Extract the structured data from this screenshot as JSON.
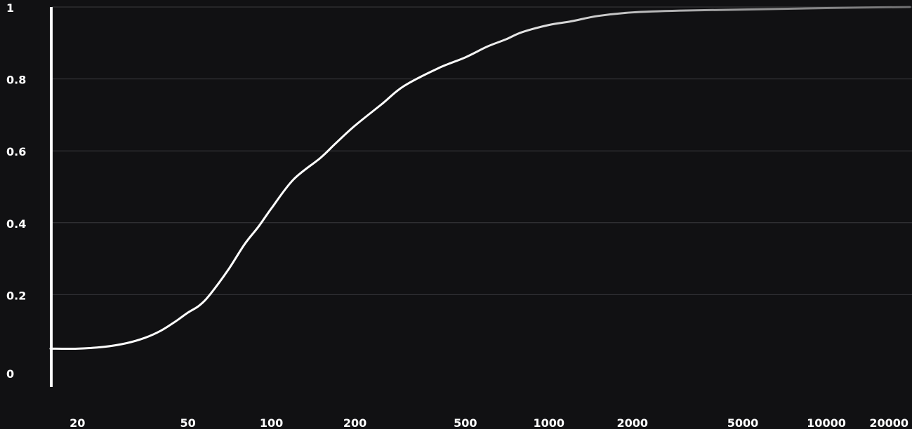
{
  "colors": {
    "background": "#111113",
    "line": "#ffffff",
    "axis": "#ffffff",
    "grid": "#3a3a3e"
  },
  "chart_data": {
    "type": "line",
    "title": "",
    "xlabel": "",
    "ylabel": "",
    "xscale": "log",
    "xlim": [
      16,
      20000
    ],
    "ylim": [
      0,
      1
    ],
    "grid": "horizontal",
    "legend": "none",
    "xticks": [
      20,
      50,
      100,
      200,
      500,
      1000,
      2000,
      5000,
      10000,
      20000
    ],
    "xtick_labels": [
      "20",
      "50",
      "100",
      "200",
      "500",
      "1000",
      "2000",
      "5000",
      "10000",
      "20000"
    ],
    "yticks": [
      0,
      0.2,
      0.4,
      0.6,
      0.8,
      1
    ],
    "ytick_labels": [
      "0",
      "0.2",
      "0.4",
      "0.6",
      "0.8",
      "1"
    ],
    "series": [
      {
        "x": [
          16,
          20,
          25,
          30,
          35,
          40,
          45,
          50,
          55,
          60,
          70,
          80,
          90,
          100,
          120,
          150,
          170,
          200,
          250,
          300,
          400,
          500,
          600,
          700,
          800,
          1000,
          1200,
          1500,
          2000,
          3000,
          5000,
          10000,
          20000
        ],
        "y": [
          0.05,
          0.05,
          0.055,
          0.065,
          0.08,
          0.1,
          0.125,
          0.15,
          0.17,
          0.2,
          0.27,
          0.34,
          0.39,
          0.44,
          0.52,
          0.58,
          0.62,
          0.67,
          0.73,
          0.78,
          0.83,
          0.86,
          0.89,
          0.91,
          0.93,
          0.95,
          0.96,
          0.975,
          0.985,
          0.99,
          0.993,
          0.997,
          1.0
        ]
      }
    ]
  }
}
